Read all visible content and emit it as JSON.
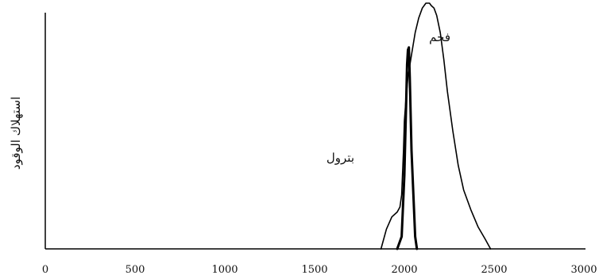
{
  "chart_data": {
    "type": "line",
    "ylabel": "استهلاك الوقود",
    "xlim": [
      0,
      3000
    ],
    "ylim": [
      0,
      100
    ],
    "x_ticks": [
      "0",
      "500",
      "1000",
      "1500",
      "2000",
      "2500",
      "3000"
    ],
    "grid": false,
    "series": [
      {
        "name": "فحم",
        "x": [
          1870,
          1900,
          1930,
          1960,
          1975,
          1985,
          1995,
          2000,
          2008,
          2020,
          2040,
          2060,
          2080,
          2100,
          2120,
          2140,
          2150,
          2165,
          2180,
          2200,
          2220,
          2240,
          2270,
          2300,
          2330,
          2370,
          2410,
          2450,
          2480
        ],
        "y": [
          0,
          8,
          13,
          15,
          17,
          22,
          40,
          52,
          60,
          70,
          79,
          88,
          94,
          98,
          100,
          100,
          99,
          98,
          95,
          88,
          77,
          64,
          48,
          34,
          24,
          16,
          9,
          4,
          0
        ]
      },
      {
        "name": "بترول",
        "x": [
          1960,
          1985,
          2000,
          2010,
          2015,
          2020,
          2025,
          2030,
          2040,
          2060,
          2070
        ],
        "y": [
          0,
          5,
          30,
          60,
          75,
          81,
          82,
          70,
          40,
          5,
          0
        ]
      }
    ]
  }
}
